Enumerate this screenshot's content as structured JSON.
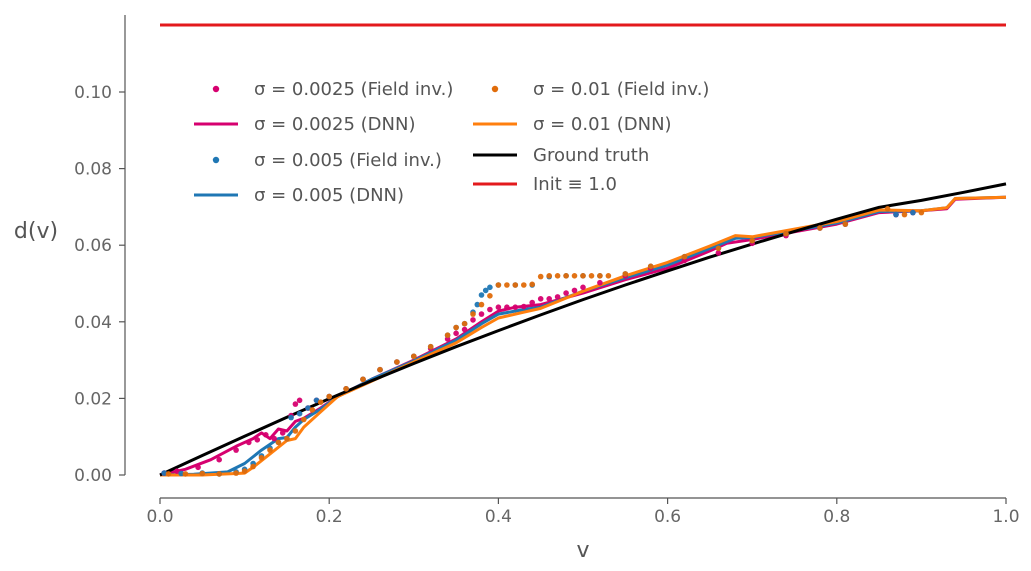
{
  "chart_data": {
    "type": "line",
    "xlabel": "v",
    "ylabel": "d(v)",
    "xlim": [
      0.0,
      1.0
    ],
    "ylim": [
      -0.005,
      0.119
    ],
    "xticks": [
      0.0,
      0.2,
      0.4,
      0.6,
      0.8,
      1.0
    ],
    "xtick_labels": [
      "0.0",
      "0.2",
      "0.4",
      "0.6",
      "0.8",
      "1.0"
    ],
    "yticks": [
      0.0,
      0.02,
      0.04,
      0.06,
      0.08,
      0.1
    ],
    "ytick_labels": [
      "0.00",
      "0.02",
      "0.04",
      "0.06",
      "0.08",
      "0.10"
    ],
    "grid": false,
    "legend_position": "upper-left",
    "legend_labels": {
      "fi_0025": "σ = 0.0025 (Field inv.)",
      "dnn_0025": "σ = 0.0025 (DNN)",
      "fi_005": "σ = 0.005 (Field inv.)",
      "dnn_005": "σ = 0.005 (DNN)",
      "fi_01": "σ = 0.01 (Field inv.)",
      "dnn_01": "σ = 0.01 (DNN)",
      "truth": "Ground truth",
      "init": "Init ≡ 1.0"
    },
    "series": [
      {
        "id": "init",
        "style": "line",
        "color": "#e31a1c",
        "x": [
          0.0,
          1.0
        ],
        "y": [
          0.1175,
          0.1175
        ]
      },
      {
        "id": "truth",
        "style": "line",
        "color": "#000000",
        "x": [
          0.0,
          0.05,
          0.1,
          0.15,
          0.2,
          0.25,
          0.3,
          0.35,
          0.4,
          0.45,
          0.5,
          0.55,
          0.6,
          0.65,
          0.7,
          0.75,
          0.8,
          0.85,
          0.9,
          0.95,
          1.0
        ],
        "y": [
          0.0,
          0.0051,
          0.0101,
          0.0151,
          0.0199,
          0.0246,
          0.0291,
          0.0335,
          0.0377,
          0.0418,
          0.0458,
          0.0496,
          0.0533,
          0.0569,
          0.0603,
          0.0636,
          0.0668,
          0.0699,
          0.0717,
          0.0738,
          0.076
        ]
      },
      {
        "id": "dnn_0025",
        "style": "line",
        "color": "#d6006f",
        "x": [
          0.0,
          0.03,
          0.06,
          0.09,
          0.11,
          0.12,
          0.13,
          0.14,
          0.15,
          0.16,
          0.17,
          0.19,
          0.21,
          0.25,
          0.3,
          0.35,
          0.38,
          0.4,
          0.42,
          0.45,
          0.5,
          0.55,
          0.6,
          0.65,
          0.67,
          0.7,
          0.75,
          0.8,
          0.85,
          0.9,
          0.93,
          0.94,
          1.0
        ],
        "y": [
          0.0,
          0.0015,
          0.004,
          0.0075,
          0.0095,
          0.011,
          0.0095,
          0.012,
          0.0115,
          0.014,
          0.0148,
          0.0175,
          0.0205,
          0.025,
          0.03,
          0.0355,
          0.04,
          0.0428,
          0.0438,
          0.0445,
          0.0475,
          0.051,
          0.054,
          0.0585,
          0.0605,
          0.0615,
          0.0635,
          0.0655,
          0.0685,
          0.069,
          0.0695,
          0.072,
          0.0725
        ]
      },
      {
        "id": "dnn_005",
        "style": "line",
        "color": "#1f77b4",
        "x": [
          0.0,
          0.04,
          0.08,
          0.1,
          0.12,
          0.14,
          0.15,
          0.16,
          0.17,
          0.19,
          0.21,
          0.25,
          0.3,
          0.35,
          0.38,
          0.4,
          0.43,
          0.45,
          0.5,
          0.55,
          0.6,
          0.65,
          0.68,
          0.7,
          0.75,
          0.8,
          0.85,
          0.9,
          0.93,
          0.94,
          1.0
        ],
        "y": [
          0.0,
          0.0002,
          0.0008,
          0.003,
          0.0065,
          0.0095,
          0.0098,
          0.0125,
          0.0145,
          0.0172,
          0.0205,
          0.025,
          0.0298,
          0.0352,
          0.0395,
          0.042,
          0.0432,
          0.0438,
          0.048,
          0.0515,
          0.0548,
          0.0592,
          0.0618,
          0.062,
          0.0638,
          0.0658,
          0.0688,
          0.069,
          0.0698,
          0.0722,
          0.0725
        ]
      },
      {
        "id": "dnn_01",
        "style": "line",
        "color": "#ff7f0e",
        "x": [
          0.0,
          0.05,
          0.1,
          0.11,
          0.13,
          0.15,
          0.16,
          0.17,
          0.19,
          0.21,
          0.25,
          0.3,
          0.35,
          0.38,
          0.4,
          0.43,
          0.45,
          0.5,
          0.55,
          0.6,
          0.65,
          0.68,
          0.7,
          0.75,
          0.8,
          0.85,
          0.9,
          0.93,
          0.94,
          1.0
        ],
        "y": [
          0.0,
          0.0,
          0.0005,
          0.002,
          0.0055,
          0.009,
          0.0095,
          0.0125,
          0.0165,
          0.0205,
          0.0245,
          0.0295,
          0.0345,
          0.0385,
          0.041,
          0.0425,
          0.0435,
          0.048,
          0.052,
          0.0555,
          0.0598,
          0.0625,
          0.0622,
          0.0642,
          0.0662,
          0.0692,
          0.069,
          0.0698,
          0.0722,
          0.0725
        ]
      },
      {
        "id": "fi_0025",
        "style": "scatter",
        "color": "#d6006f",
        "x": [
          0.005,
          0.02,
          0.045,
          0.07,
          0.09,
          0.105,
          0.115,
          0.125,
          0.135,
          0.145,
          0.155,
          0.16,
          0.165,
          0.175,
          0.185,
          0.2,
          0.22,
          0.24,
          0.26,
          0.28,
          0.3,
          0.32,
          0.34,
          0.35,
          0.36,
          0.37,
          0.38,
          0.39,
          0.4,
          0.41,
          0.42,
          0.43,
          0.44,
          0.45,
          0.46,
          0.47,
          0.48,
          0.49,
          0.5,
          0.52,
          0.55,
          0.58,
          0.62,
          0.66,
          0.7,
          0.74,
          0.78,
          0.81,
          0.87,
          0.89
        ],
        "y": [
          0.0005,
          0.001,
          0.002,
          0.004,
          0.0065,
          0.0085,
          0.0092,
          0.0105,
          0.0095,
          0.011,
          0.0155,
          0.0185,
          0.0195,
          0.0175,
          0.0195,
          0.0205,
          0.0225,
          0.025,
          0.0275,
          0.0295,
          0.031,
          0.033,
          0.0355,
          0.037,
          0.038,
          0.0405,
          0.042,
          0.0432,
          0.0438,
          0.0438,
          0.0438,
          0.044,
          0.045,
          0.046,
          0.046,
          0.0465,
          0.0475,
          0.0482,
          0.049,
          0.0502,
          0.052,
          0.054,
          0.056,
          0.058,
          0.0605,
          0.0625,
          0.0645,
          0.0655,
          0.068,
          0.0685
        ]
      },
      {
        "id": "fi_005",
        "style": "scatter",
        "color": "#1f77b4",
        "x": [
          0.005,
          0.025,
          0.05,
          0.07,
          0.09,
          0.1,
          0.11,
          0.12,
          0.13,
          0.14,
          0.15,
          0.155,
          0.165,
          0.175,
          0.185,
          0.2,
          0.22,
          0.24,
          0.26,
          0.28,
          0.3,
          0.32,
          0.34,
          0.35,
          0.36,
          0.37,
          0.375,
          0.38,
          0.385,
          0.39,
          0.4,
          0.42,
          0.44,
          0.46,
          0.48,
          0.5,
          0.52,
          0.55,
          0.58,
          0.62,
          0.66,
          0.7,
          0.74,
          0.78,
          0.81,
          0.87,
          0.89
        ],
        "y": [
          0.0005,
          0.0004,
          0.0005,
          0.0003,
          0.0008,
          0.0015,
          0.003,
          0.005,
          0.007,
          0.0085,
          0.0095,
          0.015,
          0.016,
          0.0175,
          0.0195,
          0.0205,
          0.0225,
          0.025,
          0.0275,
          0.0295,
          0.031,
          0.0335,
          0.0365,
          0.0385,
          0.0395,
          0.0425,
          0.0445,
          0.047,
          0.0482,
          0.049,
          0.0496,
          0.0496,
          0.0496,
          0.0518,
          0.052,
          0.052,
          0.052,
          0.0525,
          0.0545,
          0.057,
          0.0592,
          0.0612,
          0.063,
          0.0645,
          0.0655,
          0.068,
          0.0685
        ]
      },
      {
        "id": "fi_01",
        "style": "scatter",
        "color": "#e06c0a",
        "x": [
          0.01,
          0.03,
          0.05,
          0.07,
          0.09,
          0.1,
          0.11,
          0.12,
          0.13,
          0.14,
          0.15,
          0.16,
          0.17,
          0.18,
          0.19,
          0.2,
          0.22,
          0.24,
          0.26,
          0.28,
          0.3,
          0.32,
          0.34,
          0.35,
          0.36,
          0.37,
          0.38,
          0.39,
          0.4,
          0.41,
          0.42,
          0.43,
          0.44,
          0.45,
          0.46,
          0.47,
          0.48,
          0.49,
          0.5,
          0.51,
          0.52,
          0.53,
          0.55,
          0.58,
          0.62,
          0.66,
          0.7,
          0.74,
          0.78,
          0.81,
          0.86,
          0.88,
          0.9
        ],
        "y": [
          0.0003,
          0.0003,
          0.0004,
          0.0003,
          0.0005,
          0.001,
          0.0022,
          0.0045,
          0.0065,
          0.0085,
          0.0095,
          0.0115,
          0.0145,
          0.017,
          0.019,
          0.0205,
          0.0225,
          0.025,
          0.0275,
          0.0295,
          0.031,
          0.0335,
          0.0365,
          0.0385,
          0.0395,
          0.042,
          0.0445,
          0.0468,
          0.0496,
          0.0496,
          0.0496,
          0.0496,
          0.0498,
          0.0518,
          0.052,
          0.052,
          0.052,
          0.052,
          0.052,
          0.052,
          0.052,
          0.052,
          0.0525,
          0.0545,
          0.057,
          0.0592,
          0.0612,
          0.063,
          0.0645,
          0.0655,
          0.0695,
          0.068,
          0.0685
        ]
      }
    ]
  }
}
